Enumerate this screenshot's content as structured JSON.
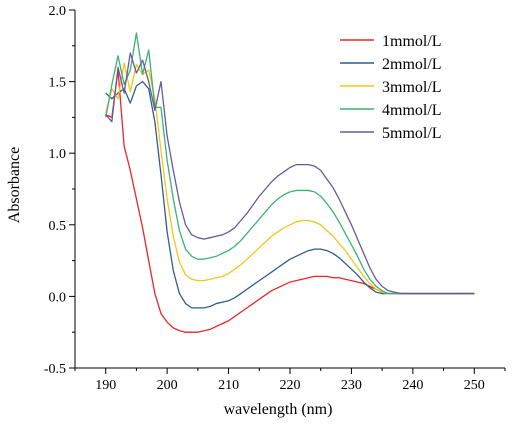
{
  "chart_data": {
    "type": "line",
    "title": "",
    "xlabel": "wavelength (nm)",
    "ylabel": "Absorbance",
    "xlim": [
      185,
      255
    ],
    "ylim": [
      -0.5,
      2.0
    ],
    "xticks": [
      190,
      200,
      210,
      220,
      230,
      240,
      250
    ],
    "yticks": [
      -0.5,
      0.0,
      0.5,
      1.0,
      1.5,
      2.0
    ],
    "xtick_labels": [
      "190",
      "200",
      "210",
      "220",
      "230",
      "240",
      "250"
    ],
    "ytick_labels": [
      "-0.5",
      "0.0",
      "0.5",
      "1.0",
      "1.5",
      "2.0"
    ],
    "grid": false,
    "legend_position": "top-right",
    "series": [
      {
        "name": "1mmol/L",
        "color": "#e8262b",
        "x": [
          190,
          191,
          192,
          193,
          194,
          195,
          196,
          197,
          198,
          199,
          200,
          201,
          202,
          203,
          204,
          205,
          206,
          207,
          208,
          209,
          210,
          211,
          212,
          213,
          214,
          215,
          216,
          217,
          218,
          219,
          220,
          221,
          222,
          223,
          224,
          225,
          226,
          227,
          228,
          229,
          230,
          231,
          232,
          233,
          234,
          235,
          236,
          237,
          238,
          239,
          240,
          242,
          245,
          250
        ],
        "y": [
          1.27,
          1.25,
          1.58,
          1.05,
          0.88,
          0.68,
          0.48,
          0.25,
          0.02,
          -0.12,
          -0.18,
          -0.22,
          -0.24,
          -0.25,
          -0.25,
          -0.25,
          -0.24,
          -0.23,
          -0.21,
          -0.19,
          -0.17,
          -0.14,
          -0.11,
          -0.08,
          -0.05,
          -0.02,
          0.01,
          0.04,
          0.06,
          0.08,
          0.1,
          0.11,
          0.12,
          0.13,
          0.14,
          0.14,
          0.14,
          0.13,
          0.13,
          0.12,
          0.11,
          0.1,
          0.09,
          0.07,
          0.05,
          0.03,
          0.02,
          0.02,
          0.02,
          0.02,
          0.02,
          0.02,
          0.02,
          0.02
        ]
      },
      {
        "name": "2mmol/L",
        "color": "#2e5e8c",
        "x": [
          190,
          191,
          192,
          193,
          194,
          195,
          196,
          197,
          198,
          199,
          200,
          201,
          202,
          203,
          204,
          205,
          206,
          207,
          208,
          209,
          210,
          211,
          212,
          213,
          214,
          215,
          216,
          217,
          218,
          219,
          220,
          221,
          222,
          223,
          224,
          225,
          226,
          227,
          228,
          229,
          230,
          231,
          232,
          233,
          234,
          235,
          236,
          237,
          238,
          239,
          240,
          242,
          245,
          250
        ],
        "y": [
          1.42,
          1.38,
          1.42,
          1.45,
          1.35,
          1.47,
          1.5,
          1.45,
          1.22,
          0.85,
          0.45,
          0.18,
          0.02,
          -0.05,
          -0.08,
          -0.08,
          -0.08,
          -0.07,
          -0.05,
          -0.04,
          -0.03,
          -0.01,
          0.02,
          0.05,
          0.08,
          0.11,
          0.14,
          0.17,
          0.2,
          0.23,
          0.26,
          0.28,
          0.3,
          0.32,
          0.33,
          0.33,
          0.32,
          0.3,
          0.27,
          0.23,
          0.19,
          0.15,
          0.1,
          0.06,
          0.03,
          0.02,
          0.02,
          0.02,
          0.02,
          0.02,
          0.02,
          0.02,
          0.02,
          0.02
        ]
      },
      {
        "name": "3mmol/L",
        "color": "#f5c518",
        "x": [
          190,
          191,
          192,
          193,
          194,
          195,
          196,
          197,
          198,
          199,
          200,
          201,
          202,
          203,
          204,
          205,
          206,
          207,
          208,
          209,
          210,
          211,
          212,
          213,
          214,
          215,
          216,
          217,
          218,
          219,
          220,
          221,
          222,
          223,
          224,
          225,
          226,
          227,
          228,
          229,
          230,
          231,
          232,
          233,
          234,
          235,
          236,
          237,
          238,
          239,
          240,
          242,
          245,
          250
        ],
        "y": [
          1.28,
          1.45,
          1.38,
          1.63,
          1.43,
          1.62,
          1.55,
          1.58,
          1.38,
          1.02,
          0.68,
          0.42,
          0.24,
          0.15,
          0.12,
          0.11,
          0.11,
          0.12,
          0.13,
          0.14,
          0.16,
          0.19,
          0.22,
          0.26,
          0.3,
          0.34,
          0.38,
          0.42,
          0.45,
          0.48,
          0.5,
          0.52,
          0.53,
          0.53,
          0.52,
          0.5,
          0.46,
          0.42,
          0.37,
          0.32,
          0.26,
          0.2,
          0.14,
          0.09,
          0.05,
          0.03,
          0.02,
          0.02,
          0.02,
          0.02,
          0.02,
          0.02,
          0.02,
          0.02
        ]
      },
      {
        "name": "4mmol/L",
        "color": "#3cb371",
        "x": [
          190,
          191,
          192,
          193,
          194,
          195,
          196,
          197,
          198,
          199,
          200,
          201,
          202,
          203,
          204,
          205,
          206,
          207,
          208,
          209,
          210,
          211,
          212,
          213,
          214,
          215,
          216,
          217,
          218,
          219,
          220,
          221,
          222,
          223,
          224,
          225,
          226,
          227,
          228,
          229,
          230,
          231,
          232,
          233,
          234,
          235,
          236,
          237,
          238,
          239,
          240,
          242,
          245,
          250
        ],
        "y": [
          1.25,
          1.48,
          1.68,
          1.48,
          1.58,
          1.84,
          1.55,
          1.72,
          1.32,
          1.32,
          0.95,
          0.68,
          0.46,
          0.33,
          0.28,
          0.26,
          0.26,
          0.27,
          0.28,
          0.3,
          0.32,
          0.35,
          0.39,
          0.44,
          0.49,
          0.54,
          0.59,
          0.64,
          0.68,
          0.71,
          0.73,
          0.74,
          0.74,
          0.74,
          0.73,
          0.7,
          0.65,
          0.59,
          0.52,
          0.44,
          0.36,
          0.28,
          0.19,
          0.12,
          0.07,
          0.04,
          0.02,
          0.02,
          0.02,
          0.02,
          0.02,
          0.02,
          0.02,
          0.02
        ]
      },
      {
        "name": "5mmol/L",
        "color": "#6a5a9a",
        "x": [
          190,
          191,
          192,
          193,
          194,
          195,
          196,
          197,
          198,
          199,
          200,
          201,
          202,
          203,
          204,
          205,
          206,
          207,
          208,
          209,
          210,
          211,
          212,
          213,
          214,
          215,
          216,
          217,
          218,
          219,
          220,
          221,
          222,
          223,
          224,
          225,
          226,
          227,
          228,
          229,
          230,
          231,
          232,
          233,
          234,
          235,
          236,
          237,
          238,
          239,
          240,
          242,
          245,
          250
        ],
        "y": [
          1.27,
          1.22,
          1.6,
          1.42,
          1.7,
          1.56,
          1.65,
          1.5,
          1.3,
          1.5,
          1.12,
          0.88,
          0.66,
          0.5,
          0.43,
          0.41,
          0.4,
          0.41,
          0.42,
          0.43,
          0.45,
          0.48,
          0.53,
          0.58,
          0.64,
          0.7,
          0.75,
          0.8,
          0.84,
          0.87,
          0.9,
          0.92,
          0.92,
          0.92,
          0.91,
          0.88,
          0.82,
          0.76,
          0.68,
          0.59,
          0.5,
          0.4,
          0.3,
          0.2,
          0.12,
          0.07,
          0.04,
          0.03,
          0.02,
          0.02,
          0.02,
          0.02,
          0.02,
          0.02
        ]
      }
    ]
  }
}
